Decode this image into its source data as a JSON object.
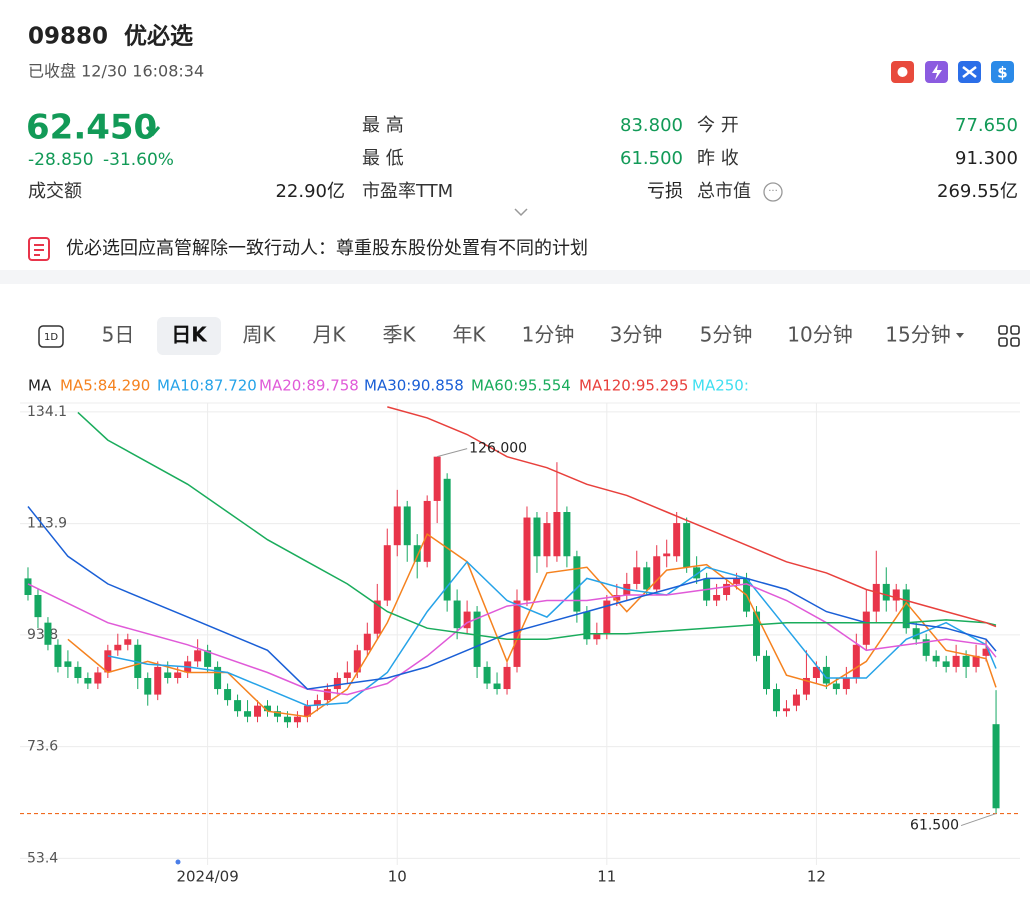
{
  "header": {
    "code": "09880",
    "name": "优必选",
    "status": "已收盘 12/30 16:08:34"
  },
  "quote": {
    "price": "62.450",
    "change": "-28.850",
    "change_pct": "-31.60%",
    "color": "#129a57"
  },
  "stats": [
    {
      "label": "成交额",
      "value": "22.90亿"
    },
    {
      "label": "最 高",
      "value": "83.800",
      "color": "#129a57"
    },
    {
      "label": "今 开",
      "value": "77.650",
      "color": "#129a57"
    },
    {
      "label": "最 低",
      "value": "61.500",
      "color": "#129a57"
    },
    {
      "label": "昨 收",
      "value": "91.300"
    },
    {
      "label": "市盈率TTM",
      "value": "亏损"
    },
    {
      "label": "总市值",
      "value": "269.55亿"
    }
  ],
  "news": "优必选回应高管解除一致行动人：尊重股东股份处置有不同的计划",
  "tabs": [
    {
      "label": "5日"
    },
    {
      "label": "日K",
      "active": true
    },
    {
      "label": "周K"
    },
    {
      "label": "月K"
    },
    {
      "label": "季K"
    },
    {
      "label": "年K"
    },
    {
      "label": "1分钟"
    },
    {
      "label": "3分钟"
    },
    {
      "label": "5分钟"
    },
    {
      "label": "10分钟"
    },
    {
      "label": "15分钟"
    }
  ],
  "chart_data": {
    "type": "candlestick",
    "legend_title": "MA",
    "grid": true,
    "up_color": "#e8344a",
    "down_color": "#15a862",
    "xlim": [
      -0.8,
      99.2
    ],
    "ylim": [
      52.2,
      135.7
    ],
    "xticks": [
      {
        "value": 18,
        "label": "2024/09"
      },
      {
        "value": 37,
        "label": "10"
      },
      {
        "value": 58,
        "label": "11"
      },
      {
        "value": 79,
        "label": "12"
      }
    ],
    "yticks": [
      134.1,
      113.9,
      93.8,
      73.6,
      53.4
    ],
    "open": [
      104,
      101,
      96,
      92,
      89,
      88,
      86,
      85,
      87,
      91,
      92,
      92,
      86,
      83,
      87,
      86,
      87,
      89,
      91,
      88,
      84,
      82,
      80,
      79,
      81,
      80,
      79,
      78,
      79,
      81,
      82,
      84,
      86,
      87,
      91,
      94,
      100,
      110,
      117,
      110,
      107,
      118,
      122,
      100,
      95,
      98,
      88,
      85,
      84,
      88,
      100,
      115,
      108,
      108,
      116,
      108,
      98,
      93,
      94,
      100,
      101,
      103,
      106,
      102,
      108,
      108,
      114,
      106,
      104,
      100,
      101,
      103,
      104,
      98,
      90,
      84,
      80,
      81,
      83,
      86,
      88,
      85,
      84,
      86,
      92,
      98,
      103,
      100,
      102,
      95,
      93,
      90,
      89,
      88,
      90,
      88,
      90,
      77.65
    ],
    "high": [
      106,
      102,
      97,
      93,
      91,
      89,
      87,
      88,
      92,
      94,
      94,
      93,
      87,
      89,
      89,
      88,
      90,
      93,
      92,
      89,
      85,
      83,
      82,
      82,
      82,
      81,
      80,
      80,
      82,
      83,
      85,
      87,
      89,
      92,
      96,
      103,
      113,
      120,
      118,
      112,
      119,
      126,
      123,
      102,
      100,
      99,
      89,
      87,
      89,
      102,
      117,
      116,
      116,
      125,
      117,
      109,
      99,
      96,
      101,
      103,
      105,
      109,
      107,
      110,
      111,
      116,
      115,
      108,
      105,
      103,
      104,
      105,
      105,
      99,
      91,
      85,
      82,
      84,
      91,
      89,
      90,
      86,
      88,
      94,
      102,
      109,
      106,
      103,
      103,
      96,
      94,
      91,
      90,
      92,
      91,
      92,
      93,
      83.8
    ],
    "low": [
      100,
      95,
      91,
      87,
      86,
      85,
      84,
      84,
      86,
      90,
      91,
      84,
      81,
      82,
      85,
      85,
      86,
      88,
      87,
      83,
      81,
      79,
      78,
      78,
      79,
      78,
      77,
      77,
      78,
      80,
      81,
      83,
      85,
      86,
      90,
      93,
      99,
      108,
      107,
      104,
      106,
      114,
      98,
      93,
      94,
      86,
      84,
      83,
      83,
      87,
      99,
      105,
      106,
      107,
      106,
      96,
      92,
      92,
      93,
      99,
      100,
      102,
      101,
      101,
      106,
      107,
      105,
      103,
      99,
      99,
      100,
      102,
      97,
      89,
      83,
      79,
      79,
      80,
      82,
      85,
      84,
      83,
      83,
      85,
      91,
      96,
      98,
      98,
      94,
      92,
      89,
      88,
      87,
      87,
      86,
      87,
      89,
      61.5
    ],
    "close": [
      101,
      97,
      92,
      88,
      88,
      86,
      85,
      87,
      91,
      92,
      93,
      86,
      83,
      88,
      86,
      87,
      89,
      91,
      88,
      84,
      82,
      80,
      79,
      81,
      80,
      79,
      78,
      79,
      81,
      82,
      84,
      86,
      87,
      91,
      94,
      100,
      110,
      117,
      110,
      107,
      118,
      126,
      100,
      95,
      98,
      88,
      85,
      84,
      88,
      100,
      115,
      108,
      114,
      116,
      108,
      98,
      93,
      94,
      100,
      101,
      103,
      106,
      102,
      108,
      108.5,
      114,
      106,
      104,
      100,
      101,
      103,
      104,
      98,
      90,
      84,
      80,
      80.5,
      83,
      86,
      88,
      85,
      84,
      86,
      92,
      98,
      103,
      100,
      102,
      95,
      93,
      90,
      89,
      88,
      90,
      88,
      90,
      91.3,
      62.45
    ],
    "series": [
      {
        "name": "MA5:84.290",
        "color": "#f5821f",
        "x": [
          4,
          8,
          12,
          16,
          20,
          24,
          28,
          32,
          36,
          40,
          44,
          48,
          52,
          56,
          60,
          64,
          68,
          72,
          76,
          80,
          84,
          88,
          92,
          96,
          97
        ],
        "values": [
          93,
          87,
          89,
          87,
          87,
          80,
          79,
          84,
          96,
          112,
          107,
          89,
          105,
          106,
          98,
          105.5,
          106.5,
          101,
          86.5,
          84.5,
          89,
          99.6,
          91,
          89.5,
          84.29
        ]
      },
      {
        "name": "MA10:87.720",
        "color": "#26a3e8",
        "x": [
          8,
          12,
          16,
          20,
          24,
          28,
          32,
          36,
          40,
          44,
          48,
          52,
          56,
          60,
          64,
          68,
          72,
          76,
          80,
          84,
          88,
          92,
          96,
          97
        ],
        "values": [
          90,
          88.5,
          88,
          87,
          84,
          81,
          81.5,
          87,
          98,
          107,
          100,
          97,
          104,
          102,
          101,
          106,
          104,
          95,
          86,
          86,
          93,
          96,
          92,
          87.72
        ]
      },
      {
        "name": "MA20:89.758",
        "color": "#e05ad8",
        "x": [
          0,
          8,
          16,
          24,
          28,
          32,
          36,
          40,
          44,
          48,
          52,
          56,
          60,
          64,
          68,
          72,
          76,
          80,
          84,
          88,
          92,
          96,
          97
        ],
        "values": [
          103,
          96,
          92,
          87,
          84,
          83,
          85,
          90,
          96,
          99,
          100,
          100,
          101,
          101,
          102,
          103,
          100,
          96,
          91,
          92,
          93,
          92,
          89.758
        ]
      },
      {
        "name": "MA30:90.858",
        "color": "#1a5fd6",
        "x": [
          0,
          4,
          8,
          16,
          24,
          28,
          32,
          36,
          40,
          44,
          48,
          52,
          56,
          60,
          64,
          68,
          72,
          76,
          80,
          84,
          88,
          92,
          96,
          97
        ],
        "values": [
          117,
          108,
          103,
          97,
          91,
          84,
          85,
          86,
          88,
          91,
          94,
          96,
          98,
          100,
          102,
          104,
          104,
          102,
          98,
          96,
          96,
          95,
          93,
          90.858
        ]
      },
      {
        "name": "MA60:95.554",
        "color": "#1aac5c",
        "x": [
          5,
          8,
          12,
          16,
          20,
          24,
          28,
          32,
          36,
          40,
          44,
          48,
          52,
          56,
          60,
          64,
          68,
          72,
          76,
          80,
          84,
          88,
          92,
          96,
          97
        ],
        "values": [
          134,
          129,
          125,
          121,
          116,
          111,
          107,
          103,
          98,
          95,
          94,
          93,
          93,
          94,
          94,
          94.5,
          95,
          95.5,
          96,
          96,
          96,
          96,
          96.5,
          96,
          95.554
        ]
      },
      {
        "name": "MA120:95.295",
        "color": "#e8403c",
        "x": [
          36,
          40,
          44,
          48,
          52,
          56,
          60,
          64,
          68,
          72,
          76,
          80,
          84,
          88,
          92,
          96,
          97
        ],
        "values": [
          135,
          133,
          130,
          126,
          124,
          121,
          119,
          116,
          113,
          110,
          107,
          105,
          102,
          100,
          98,
          96,
          95.295
        ]
      },
      {
        "name": "MA250:",
        "color": "#3fdff0",
        "x": [],
        "values": []
      }
    ],
    "annotations": [
      {
        "value": 126,
        "label": "126.000",
        "x": 41
      },
      {
        "value": 61.5,
        "label": "61.500",
        "x": 97
      }
    ],
    "hline": {
      "value": 61.5,
      "color": "#f06a1f"
    }
  }
}
